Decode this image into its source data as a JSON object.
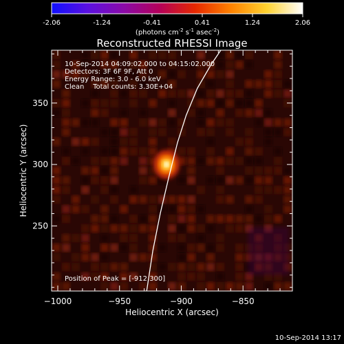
{
  "colorbar": {
    "ticks": [
      "-2.06",
      "-1.24",
      "-0.41",
      "0.41",
      "1.24",
      "2.06"
    ],
    "unit_prefix": "(photons cm",
    "unit_exp1": "-2",
    "unit_mid1": " s",
    "unit_exp2": "-1",
    "unit_mid2": " asec",
    "unit_exp3": "-2",
    "unit_suffix": ")",
    "colormap": [
      "#1010ff",
      "#5a10e0",
      "#8a0aa8",
      "#b4005a",
      "#e62800",
      "#ff8200",
      "#ffd230",
      "#ffffff"
    ]
  },
  "chart_data": {
    "type": "heatmap",
    "title": "Reconstructed RHESSI Image",
    "xlabel": "Heliocentric X (arcsec)",
    "ylabel": "Heliocentric Y (arcsec)",
    "xlim": [
      -1005,
      -810
    ],
    "ylim": [
      197,
      393
    ],
    "xticks": [
      -1000,
      -950,
      -900,
      -850
    ],
    "xtick_labels": [
      "−1000",
      "−950",
      "−900",
      "−850"
    ],
    "yticks": [
      250,
      300,
      350
    ],
    "ytick_labels": [
      "250",
      "300",
      "350"
    ],
    "source_peak": {
      "x": -912,
      "y": 300,
      "value": 2.06
    },
    "limb_curve": [
      [
        -928,
        197
      ],
      [
        -923,
        230
      ],
      [
        -917,
        260
      ],
      [
        -910,
        290
      ],
      [
        -903,
        318
      ],
      [
        -896,
        340
      ],
      [
        -887,
        362
      ],
      [
        -876,
        381
      ],
      [
        -868,
        393
      ]
    ],
    "annotations": [
      "10-Sep-2014 04:09:02.000 to 04:15:02.000",
      "Detectors: 3F 6F 9F, Att 0",
      "Energy Range: 3.0 - 6.0 keV",
      "Clean    Total counts: 3.30E+04"
    ],
    "peak_label": "Position of Peak = [-912,300]"
  },
  "footer": {
    "timestamp": "10-Sep-2014 13:17"
  }
}
